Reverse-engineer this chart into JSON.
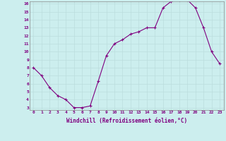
{
  "x": [
    0,
    1,
    2,
    3,
    4,
    5,
    6,
    7,
    8,
    9,
    10,
    11,
    12,
    13,
    14,
    15,
    16,
    17,
    18,
    19,
    20,
    21,
    22,
    23
  ],
  "y": [
    8.0,
    7.0,
    5.5,
    4.5,
    4.0,
    3.0,
    3.0,
    3.2,
    6.3,
    9.5,
    11.0,
    11.5,
    12.2,
    12.5,
    13.0,
    13.0,
    15.5,
    16.3,
    16.5,
    16.5,
    15.5,
    13.0,
    10.0,
    8.5
  ],
  "ylim_min": 3,
  "ylim_max": 16,
  "xlim_min": 0,
  "xlim_max": 23,
  "yticks": [
    3,
    4,
    5,
    6,
    7,
    8,
    9,
    10,
    11,
    12,
    13,
    14,
    15,
    16
  ],
  "xticks": [
    0,
    1,
    2,
    3,
    4,
    5,
    6,
    7,
    8,
    9,
    10,
    11,
    12,
    13,
    14,
    15,
    16,
    17,
    18,
    19,
    20,
    21,
    22,
    23
  ],
  "xlabel": "Windchill (Refroidissement éolien,°C)",
  "line_color": "#800080",
  "marker": "+",
  "bg_color": "#cceeee",
  "grid_color": "#bbdddd",
  "axis_color": "#800080",
  "tick_color": "#800080",
  "figw": 3.2,
  "figh": 2.0,
  "dpi": 100
}
